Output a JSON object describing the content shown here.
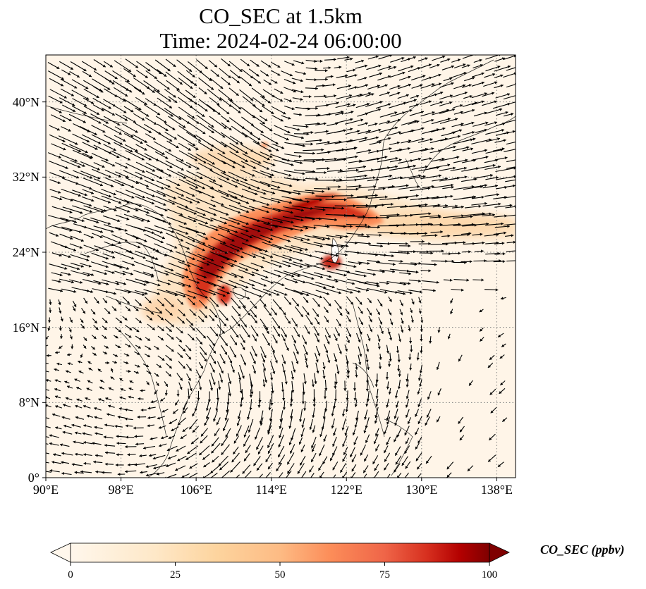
{
  "title": {
    "line1": "CO_SEC at 1.5km",
    "line2": "Time: 2024-02-24 06:00:00"
  },
  "map": {
    "lon_range": [
      90,
      140
    ],
    "lat_range": [
      0,
      45
    ],
    "lat_ticks": [
      {
        "value": 0,
        "label": "0°"
      },
      {
        "value": 8,
        "label": "8°N"
      },
      {
        "value": 16,
        "label": "16°N"
      },
      {
        "value": 24,
        "label": "24°N"
      },
      {
        "value": 32,
        "label": "32°N"
      },
      {
        "value": 40,
        "label": "40°N"
      }
    ],
    "lon_ticks": [
      {
        "value": 90,
        "label": "90°E"
      },
      {
        "value": 98,
        "label": "98°E"
      },
      {
        "value": 106,
        "label": "106°E"
      },
      {
        "value": 114,
        "label": "114°E"
      },
      {
        "value": 122,
        "label": "122°E"
      },
      {
        "value": 130,
        "label": "130°E"
      },
      {
        "value": 138,
        "label": "138°E"
      }
    ],
    "gridlines": true,
    "field_variable": "CO_SEC",
    "overlay": "wind vectors"
  },
  "colorbar": {
    "label": "CO_SEC (ppbv)",
    "colormap": "OrRd",
    "range": [
      0,
      100
    ],
    "extend": "both",
    "ticks": [
      {
        "value": 0,
        "label": "0"
      },
      {
        "value": 25,
        "label": "25"
      },
      {
        "value": 50,
        "label": "50"
      },
      {
        "value": 75,
        "label": "75"
      },
      {
        "value": 100,
        "label": "100"
      }
    ]
  },
  "colors": {
    "background_field": "#fff5e8",
    "low": "#fdd49e",
    "mid": "#fc8d59",
    "high": "#b30000",
    "max": "#7f0000"
  }
}
